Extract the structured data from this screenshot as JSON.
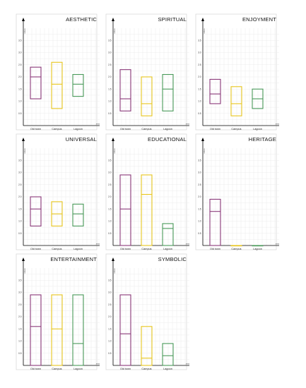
{
  "chart_data": [
    {
      "type": "bar",
      "title": "AESTHETIC",
      "ylabel": "values",
      "xlabel": "area",
      "ylim": [
        0,
        4
      ],
      "yticks": [
        "0.5",
        "1.0",
        "1.5",
        "2.0",
        "2.5",
        "3.0",
        "3.5"
      ],
      "categories": [
        "Old town",
        "Campus",
        "Lagoon"
      ],
      "colors": [
        "#8b3a7a",
        "#e8c61e",
        "#4a9a5a"
      ],
      "boxes": [
        {
          "category": "Old town",
          "low": 1.1,
          "mid": 2.0,
          "high": 2.4
        },
        {
          "category": "Campus",
          "low": 0.7,
          "mid": 1.7,
          "high": 2.6
        },
        {
          "category": "Lagoon",
          "low": 1.2,
          "mid": 1.7,
          "high": 2.1
        }
      ]
    },
    {
      "type": "bar",
      "title": "SPIRITUAL",
      "ylabel": "values",
      "xlabel": "area",
      "ylim": [
        0,
        4
      ],
      "yticks": [
        "0.5",
        "1.0",
        "1.5",
        "2.0",
        "2.5",
        "3.0",
        "3.5"
      ],
      "categories": [
        "Old town",
        "Campus",
        "Lagoon"
      ],
      "colors": [
        "#8b3a7a",
        "#e8c61e",
        "#4a9a5a"
      ],
      "boxes": [
        {
          "category": "Old town",
          "low": 0.6,
          "mid": 1.1,
          "high": 2.3
        },
        {
          "category": "Campus",
          "low": 0.4,
          "mid": 0.9,
          "high": 2.0
        },
        {
          "category": "Lagoon",
          "low": 0.6,
          "mid": 1.5,
          "high": 2.1
        }
      ]
    },
    {
      "type": "bar",
      "title": "ENJOYMENT",
      "ylabel": "values",
      "xlabel": "area",
      "ylim": [
        0,
        4
      ],
      "yticks": [
        "0.5",
        "1.0",
        "1.5",
        "2.0",
        "2.5",
        "3.0",
        "3.5"
      ],
      "categories": [
        "Old town",
        "Campus",
        "Lagoon"
      ],
      "colors": [
        "#8b3a7a",
        "#e8c61e",
        "#4a9a5a"
      ],
      "boxes": [
        {
          "category": "Old town",
          "low": 0.9,
          "mid": 1.3,
          "high": 1.9
        },
        {
          "category": "Campus",
          "low": 0.4,
          "mid": 0.9,
          "high": 1.6
        },
        {
          "category": "Lagoon",
          "low": 0.7,
          "mid": 1.1,
          "high": 1.5
        }
      ]
    },
    {
      "type": "bar",
      "title": "UNIVERSAL",
      "ylabel": "values",
      "xlabel": "area",
      "ylim": [
        0,
        4
      ],
      "yticks": [
        "0.5",
        "1.0",
        "1.5",
        "2.0",
        "2.5",
        "3.0",
        "3.5"
      ],
      "categories": [
        "Old town",
        "Campus",
        "Lagoon"
      ],
      "colors": [
        "#8b3a7a",
        "#e8c61e",
        "#4a9a5a"
      ],
      "boxes": [
        {
          "category": "Old town",
          "low": 0.8,
          "mid": 1.5,
          "high": 2.0
        },
        {
          "category": "Campus",
          "low": 0.8,
          "mid": 1.3,
          "high": 1.8
        },
        {
          "category": "Lagoon",
          "low": 0.8,
          "mid": 1.3,
          "high": 1.7
        }
      ]
    },
    {
      "type": "bar",
      "title": "EDUCATIONAL",
      "ylabel": "values",
      "xlabel": "area",
      "ylim": [
        0,
        4
      ],
      "yticks": [
        "0.5",
        "1.0",
        "1.5",
        "2.0",
        "2.5",
        "3.0",
        "3.5"
      ],
      "categories": [
        "Old town",
        "Campus",
        "Lagoon"
      ],
      "colors": [
        "#8b3a7a",
        "#e8c61e",
        "#4a9a5a"
      ],
      "boxes": [
        {
          "category": "Old town",
          "low": 0.0,
          "mid": 1.5,
          "high": 2.9
        },
        {
          "category": "Campus",
          "low": 0.0,
          "mid": 2.1,
          "high": 2.9
        },
        {
          "category": "Lagoon",
          "low": 0.0,
          "mid": 0.7,
          "high": 0.9
        }
      ]
    },
    {
      "type": "bar",
      "title": "HERITAGE",
      "ylabel": "values",
      "xlabel": "area",
      "ylim": [
        0,
        4
      ],
      "yticks": [
        "0.5",
        "1.0",
        "1.5",
        "2.0",
        "2.5",
        "3.0",
        "3.5"
      ],
      "categories": [
        "Old town",
        "Campus",
        "Lagoon"
      ],
      "colors": [
        "#8b3a7a",
        "#e8c61e",
        "#4a9a5a"
      ],
      "boxes": [
        {
          "category": "Old town",
          "low": 0.0,
          "mid": 1.4,
          "high": 1.9
        },
        {
          "category": "Campus",
          "low": 0.0,
          "mid": 0.0,
          "high": 0.0
        },
        {
          "category": "Lagoon",
          "low": 0.0,
          "mid": 0.0,
          "high": 0.0
        }
      ]
    },
    {
      "type": "bar",
      "title": "ENTERTAINMENT",
      "ylabel": "values",
      "xlabel": "area",
      "ylim": [
        0,
        4
      ],
      "yticks": [
        "0.5",
        "1.0",
        "1.5",
        "2.0",
        "2.5",
        "3.0",
        "3.5"
      ],
      "categories": [
        "Old town",
        "Campus",
        "Lagoon"
      ],
      "colors": [
        "#8b3a7a",
        "#e8c61e",
        "#4a9a5a"
      ],
      "boxes": [
        {
          "category": "Old town",
          "low": 0.0,
          "mid": 1.6,
          "high": 2.9
        },
        {
          "category": "Campus",
          "low": 0.0,
          "mid": 1.5,
          "high": 2.9
        },
        {
          "category": "Lagoon",
          "low": 0.0,
          "mid": 0.9,
          "high": 2.9
        }
      ]
    },
    {
      "type": "bar",
      "title": "SYMBOLIC",
      "ylabel": "values",
      "xlabel": "area",
      "ylim": [
        0,
        4
      ],
      "yticks": [
        "0.5",
        "1.0",
        "1.5",
        "2.0",
        "2.5",
        "3.0",
        "3.5"
      ],
      "categories": [
        "Old town",
        "Campus",
        "Lagoon"
      ],
      "colors": [
        "#8b3a7a",
        "#e8c61e",
        "#4a9a5a"
      ],
      "boxes": [
        {
          "category": "Old town",
          "low": 0.0,
          "mid": 1.3,
          "high": 2.9
        },
        {
          "category": "Campus",
          "low": 0.0,
          "mid": 0.3,
          "high": 1.6
        },
        {
          "category": "Lagoon",
          "low": 0.0,
          "mid": 0.4,
          "high": 0.9
        }
      ]
    }
  ]
}
